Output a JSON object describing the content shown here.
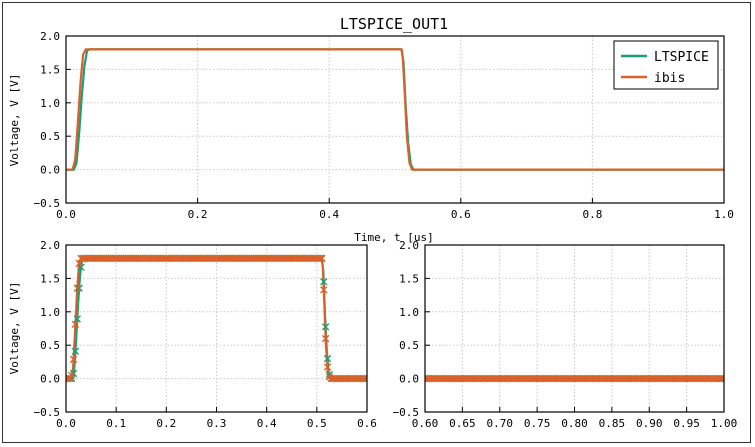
{
  "figure": {
    "title": "LTSPICE_OUT1",
    "xlabel": "Time, t [us]",
    "ylabel": "Voltage, V [V]"
  },
  "colors": {
    "ltspice": "#1a9e77",
    "ibis": "#d8622a",
    "grid": "#c8c8c8",
    "axes": "#000000"
  },
  "chart_data": [
    {
      "panel": "top",
      "type": "line",
      "title": "LTSPICE_OUT1",
      "xlabel": "Time, t [us]",
      "ylabel": "Voltage, V [V]",
      "xlim": [
        0.0,
        1.0
      ],
      "ylim": [
        -0.5,
        2.0
      ],
      "xticks": [
        "0.0",
        "0.2",
        "0.4",
        "0.6",
        "0.8",
        "1.0"
      ],
      "yticks": [
        "−0.5",
        "0.0",
        "0.5",
        "1.0",
        "1.5",
        "2.0"
      ],
      "grid": true,
      "legend": "top-right",
      "series": [
        {
          "name": "LTSPICE",
          "color": "#1a9e77",
          "x": [
            0.0,
            0.012,
            0.016,
            0.02,
            0.024,
            0.028,
            0.032,
            0.036,
            0.51,
            0.513,
            0.516,
            0.52,
            0.524,
            0.528,
            1.0
          ],
          "y": [
            0.0,
            0.0,
            0.1,
            0.55,
            1.1,
            1.55,
            1.78,
            1.8,
            1.8,
            1.6,
            1.0,
            0.4,
            0.08,
            0.0,
            0.0
          ]
        },
        {
          "name": "ibis",
          "color": "#d8622a",
          "x": [
            0.0,
            0.01,
            0.014,
            0.018,
            0.022,
            0.026,
            0.03,
            0.51,
            0.512,
            0.515,
            0.518,
            0.522,
            0.526,
            1.0
          ],
          "y": [
            0.0,
            0.0,
            0.15,
            0.7,
            1.3,
            1.72,
            1.8,
            1.8,
            1.65,
            1.1,
            0.5,
            0.1,
            0.0,
            0.0
          ]
        }
      ]
    },
    {
      "panel": "bottom-left",
      "type": "line",
      "xlabel": "",
      "ylabel": "Voltage, V [V]",
      "xlim": [
        0.0,
        0.6
      ],
      "ylim": [
        -0.5,
        2.0
      ],
      "xticks": [
        "0.0",
        "0.1",
        "0.2",
        "0.3",
        "0.4",
        "0.5",
        "0.6"
      ],
      "yticks": [
        "−0.5",
        "0.0",
        "0.5",
        "1.0",
        "1.5",
        "2.0"
      ],
      "grid": true,
      "markers": "x",
      "series": [
        {
          "name": "LTSPICE",
          "color": "#1a9e77",
          "x": [
            0.0,
            0.012,
            0.016,
            0.02,
            0.024,
            0.028,
            0.032,
            0.036,
            0.51,
            0.513,
            0.516,
            0.52,
            0.524,
            0.528,
            0.6
          ],
          "y": [
            0.0,
            0.0,
            0.1,
            0.55,
            1.1,
            1.55,
            1.78,
            1.8,
            1.8,
            1.6,
            1.0,
            0.4,
            0.08,
            0.0,
            0.0
          ]
        },
        {
          "name": "ibis",
          "color": "#d8622a",
          "x": [
            0.0,
            0.01,
            0.014,
            0.018,
            0.022,
            0.026,
            0.03,
            0.51,
            0.512,
            0.515,
            0.518,
            0.522,
            0.526,
            0.6
          ],
          "y": [
            0.0,
            0.0,
            0.15,
            0.7,
            1.3,
            1.72,
            1.8,
            1.8,
            1.65,
            1.1,
            0.5,
            0.1,
            0.0,
            0.0
          ]
        }
      ]
    },
    {
      "panel": "bottom-right",
      "type": "line",
      "xlabel": "",
      "ylabel": "",
      "xlim": [
        0.6,
        1.0
      ],
      "ylim": [
        -0.5,
        2.0
      ],
      "xticks": [
        "0.60",
        "0.65",
        "0.70",
        "0.75",
        "0.80",
        "0.85",
        "0.90",
        "0.95",
        "1.00"
      ],
      "yticks": [
        "−0.5",
        "0.0",
        "0.5",
        "1.0",
        "1.5",
        "2.0"
      ],
      "grid": true,
      "markers": "x",
      "series": [
        {
          "name": "LTSPICE",
          "color": "#1a9e77",
          "x": [
            0.6,
            1.0
          ],
          "y": [
            0.0,
            0.0
          ]
        },
        {
          "name": "ibis",
          "color": "#d8622a",
          "x": [
            0.6,
            1.0
          ],
          "y": [
            0.0,
            0.0
          ]
        }
      ]
    }
  ]
}
